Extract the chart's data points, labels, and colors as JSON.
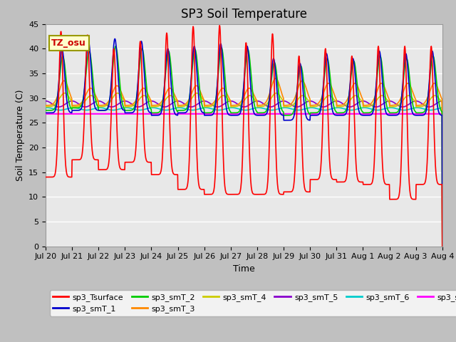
{
  "title": "SP3 Soil Temperature",
  "xlabel": "Time",
  "ylabel": "Soil Temperature (C)",
  "ylim": [
    0,
    45
  ],
  "yticks": [
    0,
    5,
    10,
    15,
    20,
    25,
    30,
    35,
    40,
    45
  ],
  "fig_bg": "#c0c0c0",
  "plot_bg": "#e8e8e8",
  "grid_bg_low": "#d0d0d0",
  "tz_label": "TZ_osu",
  "series_colors": {
    "sp3_Tsurface": "#ff0000",
    "sp3_smT_1": "#0000cc",
    "sp3_smT_2": "#00cc00",
    "sp3_smT_3": "#ff8800",
    "sp3_smT_4": "#cccc00",
    "sp3_smT_5": "#8800cc",
    "sp3_smT_6": "#00cccc",
    "sp3_smT_7": "#ff00ff"
  },
  "num_days": 15,
  "points_per_day": 96,
  "surface_peaks": [
    43.5,
    42.8,
    40.0,
    41.5,
    43.2,
    44.5,
    44.7,
    41.2,
    43.0,
    38.5,
    40.0,
    38.5,
    40.5,
    40.5,
    40.5
  ],
  "surface_mins": [
    14.0,
    17.5,
    15.5,
    17.0,
    14.5,
    11.5,
    10.5,
    10.5,
    10.5,
    11.0,
    13.5,
    13.0,
    12.5,
    9.5,
    12.5
  ],
  "smT1_peaks": [
    40.0,
    41.5,
    42.0,
    41.5,
    40.0,
    40.5,
    41.0,
    40.5,
    38.0,
    37.0,
    39.0,
    38.0,
    39.5,
    39.0,
    39.5
  ],
  "smT1_mins": [
    27.0,
    27.5,
    27.5,
    27.0,
    26.5,
    27.0,
    26.5,
    26.5,
    26.5,
    25.5,
    26.5,
    26.5,
    26.5,
    26.5,
    26.5
  ],
  "smT2_peaks": [
    38.5,
    39.5,
    40.5,
    40.0,
    39.5,
    39.8,
    40.2,
    39.8,
    37.2,
    36.5,
    38.0,
    37.5,
    38.5,
    38.0,
    38.5
  ],
  "smT2_mins": [
    27.5,
    28.0,
    27.5,
    27.5,
    27.0,
    27.5,
    27.0,
    27.0,
    27.0,
    26.5,
    27.0,
    27.0,
    27.0,
    27.0,
    27.0
  ],
  "smT3_peaks": [
    33.5,
    32.0,
    32.5,
    32.0,
    32.0,
    32.5,
    32.0,
    32.0,
    34.0,
    33.5,
    33.0,
    33.0,
    33.0,
    33.0,
    33.0
  ],
  "smT3_mins": [
    28.5,
    28.5,
    28.5,
    28.5,
    28.5,
    28.5,
    28.5,
    28.5,
    28.5,
    28.5,
    28.5,
    28.5,
    28.5,
    28.5,
    28.5
  ],
  "smT4_peaks": [
    31.0,
    30.5,
    31.0,
    30.5,
    30.5,
    31.0,
    30.5,
    30.5,
    31.0,
    30.5,
    30.5,
    30.5,
    30.5,
    30.5,
    30.5
  ],
  "smT4_mins": [
    28.2,
    28.2,
    28.2,
    28.2,
    28.2,
    28.2,
    28.2,
    28.2,
    28.2,
    28.2,
    28.2,
    28.2,
    28.2,
    28.2,
    28.2
  ],
  "smT5_base": 28.8,
  "smT5_amp": 0.6,
  "smT6_base": 27.8,
  "smT6_amp": 0.25,
  "smT7_base": 26.8,
  "x_tick_labels": [
    "Jul 20",
    "Jul 21",
    "Jul 22",
    "Jul 23",
    "Jul 24",
    "Jul 25",
    "Jul 26",
    "Jul 27",
    "Jul 28",
    "Jul 29",
    "Jul 30",
    "Jul 31",
    "Aug 1",
    "Aug 2",
    "Aug 3",
    "Aug 4"
  ],
  "title_fontsize": 12,
  "label_fontsize": 9,
  "tick_fontsize": 8,
  "legend_fontsize": 8
}
